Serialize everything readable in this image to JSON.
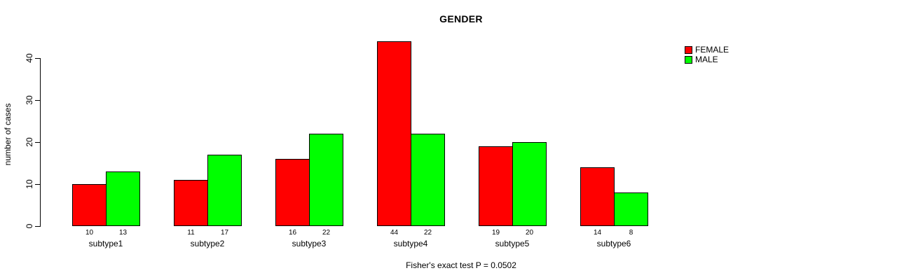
{
  "chart_data": {
    "type": "bar",
    "grouped": true,
    "title": "GENDER",
    "xlabel": "",
    "ylabel": "number of cases",
    "categories": [
      "subtype1",
      "subtype2",
      "subtype3",
      "subtype4",
      "subtype5",
      "subtype6"
    ],
    "series": [
      {
        "name": "FEMALE",
        "color": "#ff0000",
        "values": [
          10,
          11,
          16,
          44,
          19,
          14
        ]
      },
      {
        "name": "MALE",
        "color": "#00ff00",
        "values": [
          13,
          17,
          22,
          22,
          20,
          8
        ]
      }
    ],
    "bar_value_labels": true,
    "ylim": [
      0,
      44
    ],
    "yticks": [
      0,
      10,
      20,
      30,
      40
    ],
    "grid": false,
    "legend_position": "top-right",
    "annotation": "Fisher's exact test P = 0.0502"
  },
  "colors": {
    "axis": "#000000",
    "text": "#000000",
    "background": "#ffffff"
  }
}
